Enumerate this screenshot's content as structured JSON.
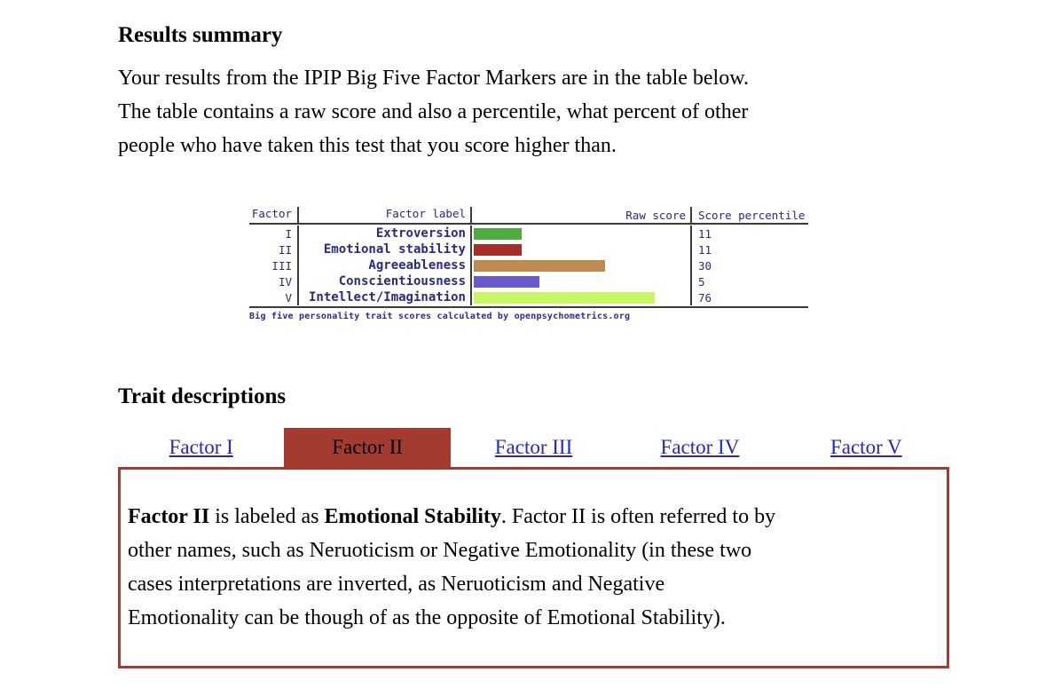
{
  "page": {
    "results_heading": "Results summary",
    "intro_paragraph": "Your results from the IPIP Big Five Factor Markers are in the table below.\nThe table contains a raw score and also a percentile, what percent of other\npeople who have taken this test that you score higher than.",
    "trait_heading": "Trait descriptions"
  },
  "chart_data": {
    "type": "bar",
    "columns": [
      "Factor",
      "Factor label",
      "Raw score",
      "Score percentile"
    ],
    "rows": [
      {
        "factor": "I",
        "label": "Extroversion",
        "bar_pct": 22,
        "color": "#4cad3e",
        "percentile": "11"
      },
      {
        "factor": "II",
        "label": "Emotional stability",
        "bar_pct": 22,
        "color": "#a62c26",
        "percentile": "11"
      },
      {
        "factor": "III",
        "label": "Agreeableness",
        "bar_pct": 60,
        "color": "#bf8a4e",
        "percentile": "30"
      },
      {
        "factor": "IV",
        "label": "Conscientiousness",
        "bar_pct": 30,
        "color": "#6a5acd",
        "percentile": "5"
      },
      {
        "factor": "V",
        "label": "Intellect/Imagination",
        "bar_pct": 83,
        "color": "#c8f763",
        "percentile": "76"
      }
    ],
    "caption": "Big five personality trait scores calculated by openpsychometrics.org",
    "legend": "none",
    "note": "bar_pct is the bar length as a percent of the Raw score column width"
  },
  "tabs": {
    "items": [
      {
        "label": "Factor I",
        "selected": false
      },
      {
        "label": "Factor II",
        "selected": true
      },
      {
        "label": "Factor III",
        "selected": false
      },
      {
        "label": "Factor IV",
        "selected": false
      },
      {
        "label": "Factor V",
        "selected": false
      }
    ]
  },
  "description": {
    "intro_bold": "Factor II",
    "middle": " is labeled as ",
    "label_bold": "Emotional Stability",
    "body": ". Factor II is often referred to by\nother names, such as Neruoticism or Negative Emotionality (in these two\ncases interpretations are inverted, as Neruoticism and Negative\nEmotionality can be though of as the opposite of Emotional Stability)."
  },
  "colors": {
    "accent_red": "#a33b31",
    "link_blue": "#2626cf",
    "chart_text_navy": "#28288e"
  }
}
